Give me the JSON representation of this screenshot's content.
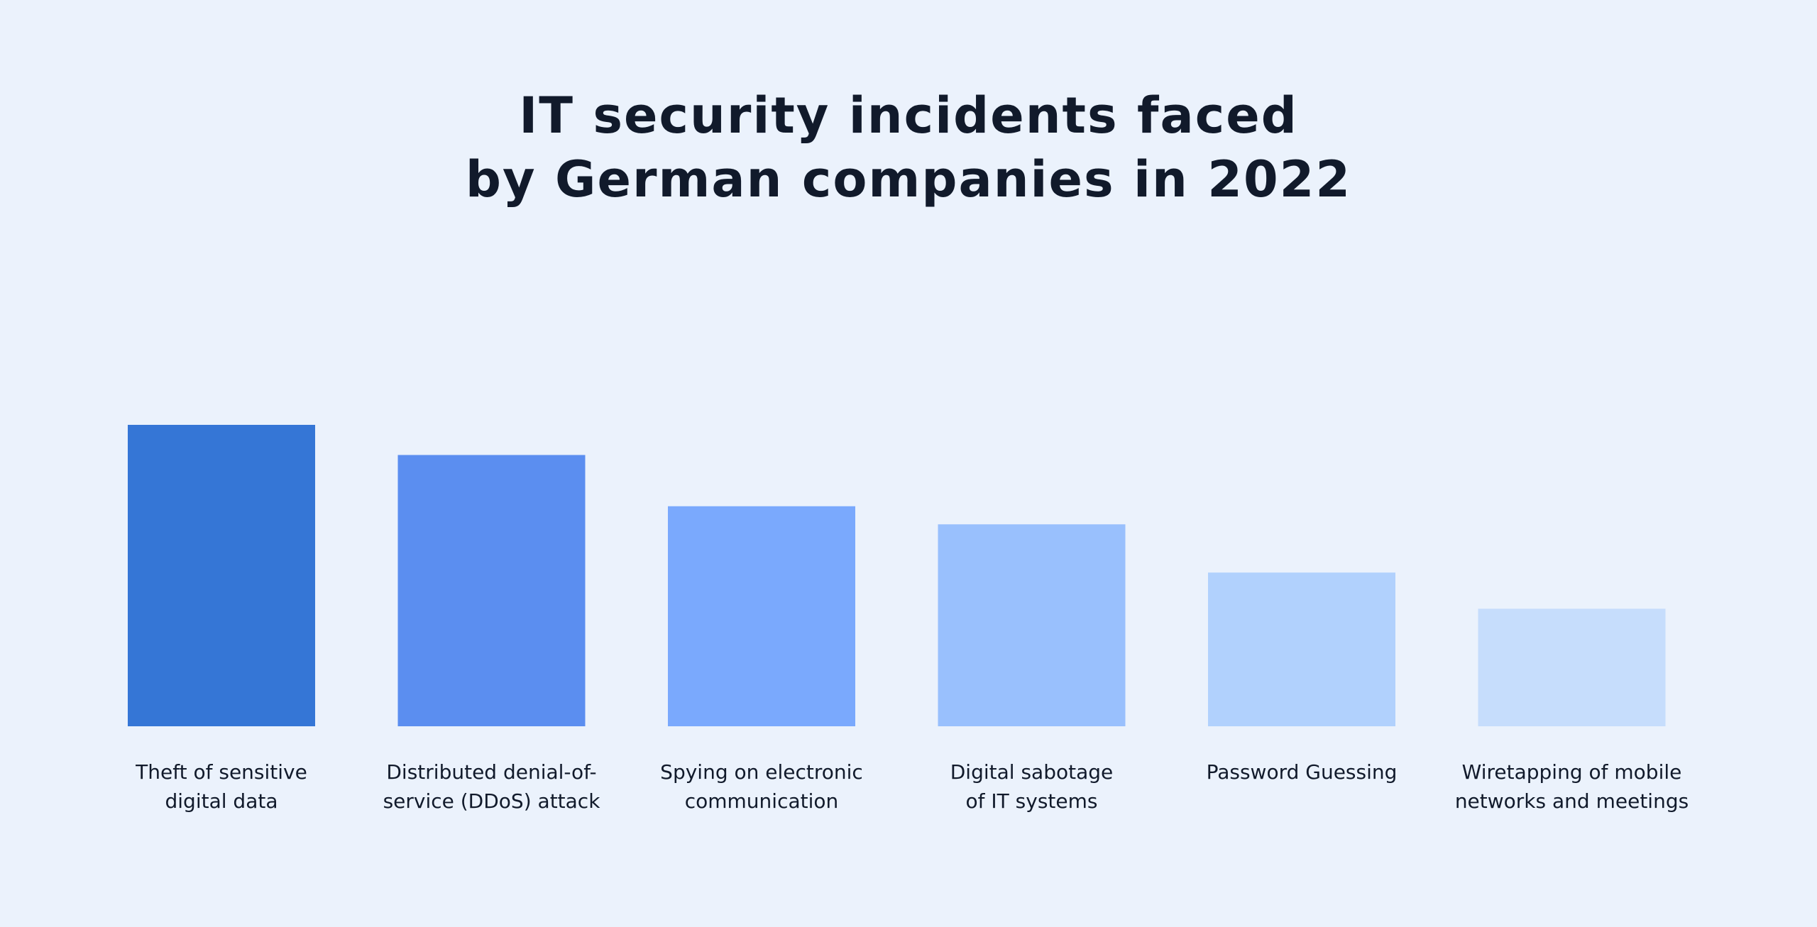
{
  "chart_data": {
    "type": "bar",
    "title": [
      "IT security incidents faced",
      "by German companies in 2022"
    ],
    "categories": [
      [
        "Theft of sensitive",
        "digital data"
      ],
      [
        "Distributed denial-of-",
        "service (DDoS) attack"
      ],
      [
        "Spying on electronic",
        "communication"
      ],
      [
        "Digital sabotage",
        "of IT systems"
      ],
      [
        "Password Guessing"
      ],
      [
        "Wiretapping of mobile",
        "networks and meetings"
      ]
    ],
    "values": [
      100,
      90,
      73,
      67,
      51,
      39
    ],
    "ylim": [
      0,
      100
    ],
    "grid": false,
    "axes_visible": false,
    "colors": [
      "#3576d6",
      "#5b8ef0",
      "#7aa9fd",
      "#99c0fd",
      "#b1d1fd",
      "#c6ddfc"
    ],
    "background": "#ebf2fc"
  }
}
